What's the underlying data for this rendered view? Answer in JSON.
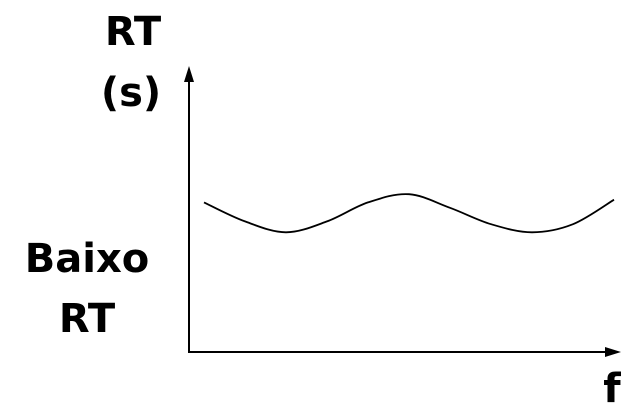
{
  "chart_data": {
    "type": "line",
    "ylabel_lines": [
      "RT",
      "(s)"
    ],
    "xlabel": "f",
    "level_label_lines": [
      "Baixo",
      "RT"
    ],
    "grid": false,
    "legend": "none",
    "series": [
      {
        "x": [
          0,
          0.1,
          0.2,
          0.3,
          0.4,
          0.5,
          0.6,
          0.7,
          0.8,
          0.9,
          1.0
        ],
        "y": [
          0.55,
          0.48,
          0.44,
          0.48,
          0.55,
          0.58,
          0.53,
          0.47,
          0.44,
          0.47,
          0.56
        ]
      }
    ],
    "line_color": "#000000",
    "axis_color": "#000000"
  }
}
